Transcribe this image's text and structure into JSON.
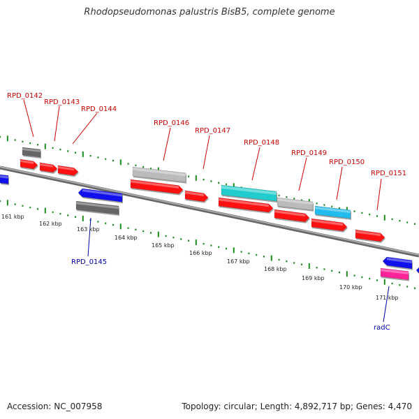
{
  "title": "Rhodopseudomonas palustris BisB5, complete genome",
  "footer": {
    "accession": "Accession: NC_007958",
    "summary": "Topology: circular; Length: 4,892,717 bp; Genes: 4,470"
  },
  "colors": {
    "backbone": "#888888",
    "tick": "#1a8a1a",
    "label_forward": "#cc0000",
    "label_reverse": "#0000aa",
    "red": "#ff1111",
    "grey": "#bbbbbb",
    "dark_grey": "#666666",
    "blue": "#1111ee",
    "teal": "#22cccc",
    "sky": "#22bbee",
    "magenta": "#ff2299"
  },
  "kbp_marks": [
    "161 kbp",
    "162 kbp",
    "163 kbp",
    "164 kbp",
    "165 kbp",
    "166 kbp",
    "167 kbp",
    "168 kbp",
    "169 kbp",
    "170 kbp",
    "171 kbp"
  ],
  "gene_labels": {
    "forward": [
      "RPD_0142",
      "RPD_0143",
      "RPD_0144",
      "RPD_0146",
      "RPD_0147",
      "RPD_0148",
      "RPD_0149",
      "RPD_0150",
      "RPD_0151"
    ],
    "reverse": [
      "RPD_0145",
      "radC"
    ]
  }
}
